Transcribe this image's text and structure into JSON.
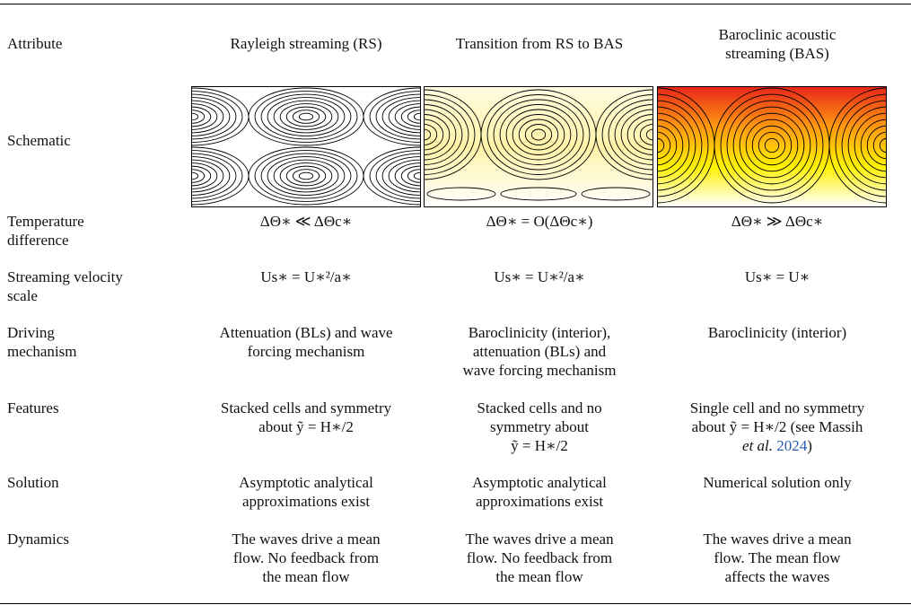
{
  "table": {
    "header": [
      "Attribute",
      "Rayleigh streaming (RS)",
      "Transition from RS to BAS",
      [
        "Baroclinic acoustic",
        "streaming (BAS)"
      ]
    ],
    "schematic_label": "Schematic",
    "rows": [
      {
        "label": [
          "Temperature",
          "difference"
        ],
        "cells": [
          [
            "ΔΘ∗ ≪ ΔΘc∗"
          ],
          [
            "ΔΘ∗ = O(ΔΘc∗)"
          ],
          [
            "ΔΘ∗ ≫ ΔΘc∗"
          ]
        ]
      },
      {
        "label": [
          "Streaming velocity",
          "scale"
        ],
        "cells": [
          [
            "Us∗ = U∗²/a∗"
          ],
          [
            "Us∗ = U∗²/a∗"
          ],
          [
            "Us∗ = U∗"
          ]
        ]
      },
      {
        "label": [
          "Driving",
          "mechanism"
        ],
        "cells": [
          [
            "Attenuation (BLs) and wave",
            "forcing mechanism"
          ],
          [
            "Baroclinicity (interior),",
            "attenuation (BLs) and",
            "wave forcing mechanism"
          ],
          [
            "Baroclinicity (interior)"
          ]
        ]
      },
      {
        "label": [
          "Features"
        ],
        "cells": [
          [
            "Stacked cells and symmetry",
            "about ỹ = H∗/2"
          ],
          [
            "Stacked cells and no",
            "symmetry about",
            "ỹ = H∗/2"
          ],
          [
            "Single cell and no symmetry",
            "about ỹ = H∗/2 (see Massih",
            {
              "italic": "et al.",
              "link": "2024",
              "end": ")"
            }
          ]
        ]
      },
      {
        "label": [
          "Solution"
        ],
        "cells": [
          [
            "Asymptotic analytical",
            "approximations exist"
          ],
          [
            "Asymptotic analytical",
            "approximations exist"
          ],
          [
            "Numerical solution only"
          ]
        ]
      },
      {
        "label": [
          "Dynamics"
        ],
        "cells": [
          [
            "The waves drive a mean",
            "flow. No feedback from",
            "the mean flow"
          ],
          [
            "The waves drive a mean",
            "flow. No feedback from",
            "the mean flow"
          ],
          [
            "The waves drive a mean",
            "flow. The mean flow",
            "affects the waves"
          ]
        ]
      }
    ]
  }
}
